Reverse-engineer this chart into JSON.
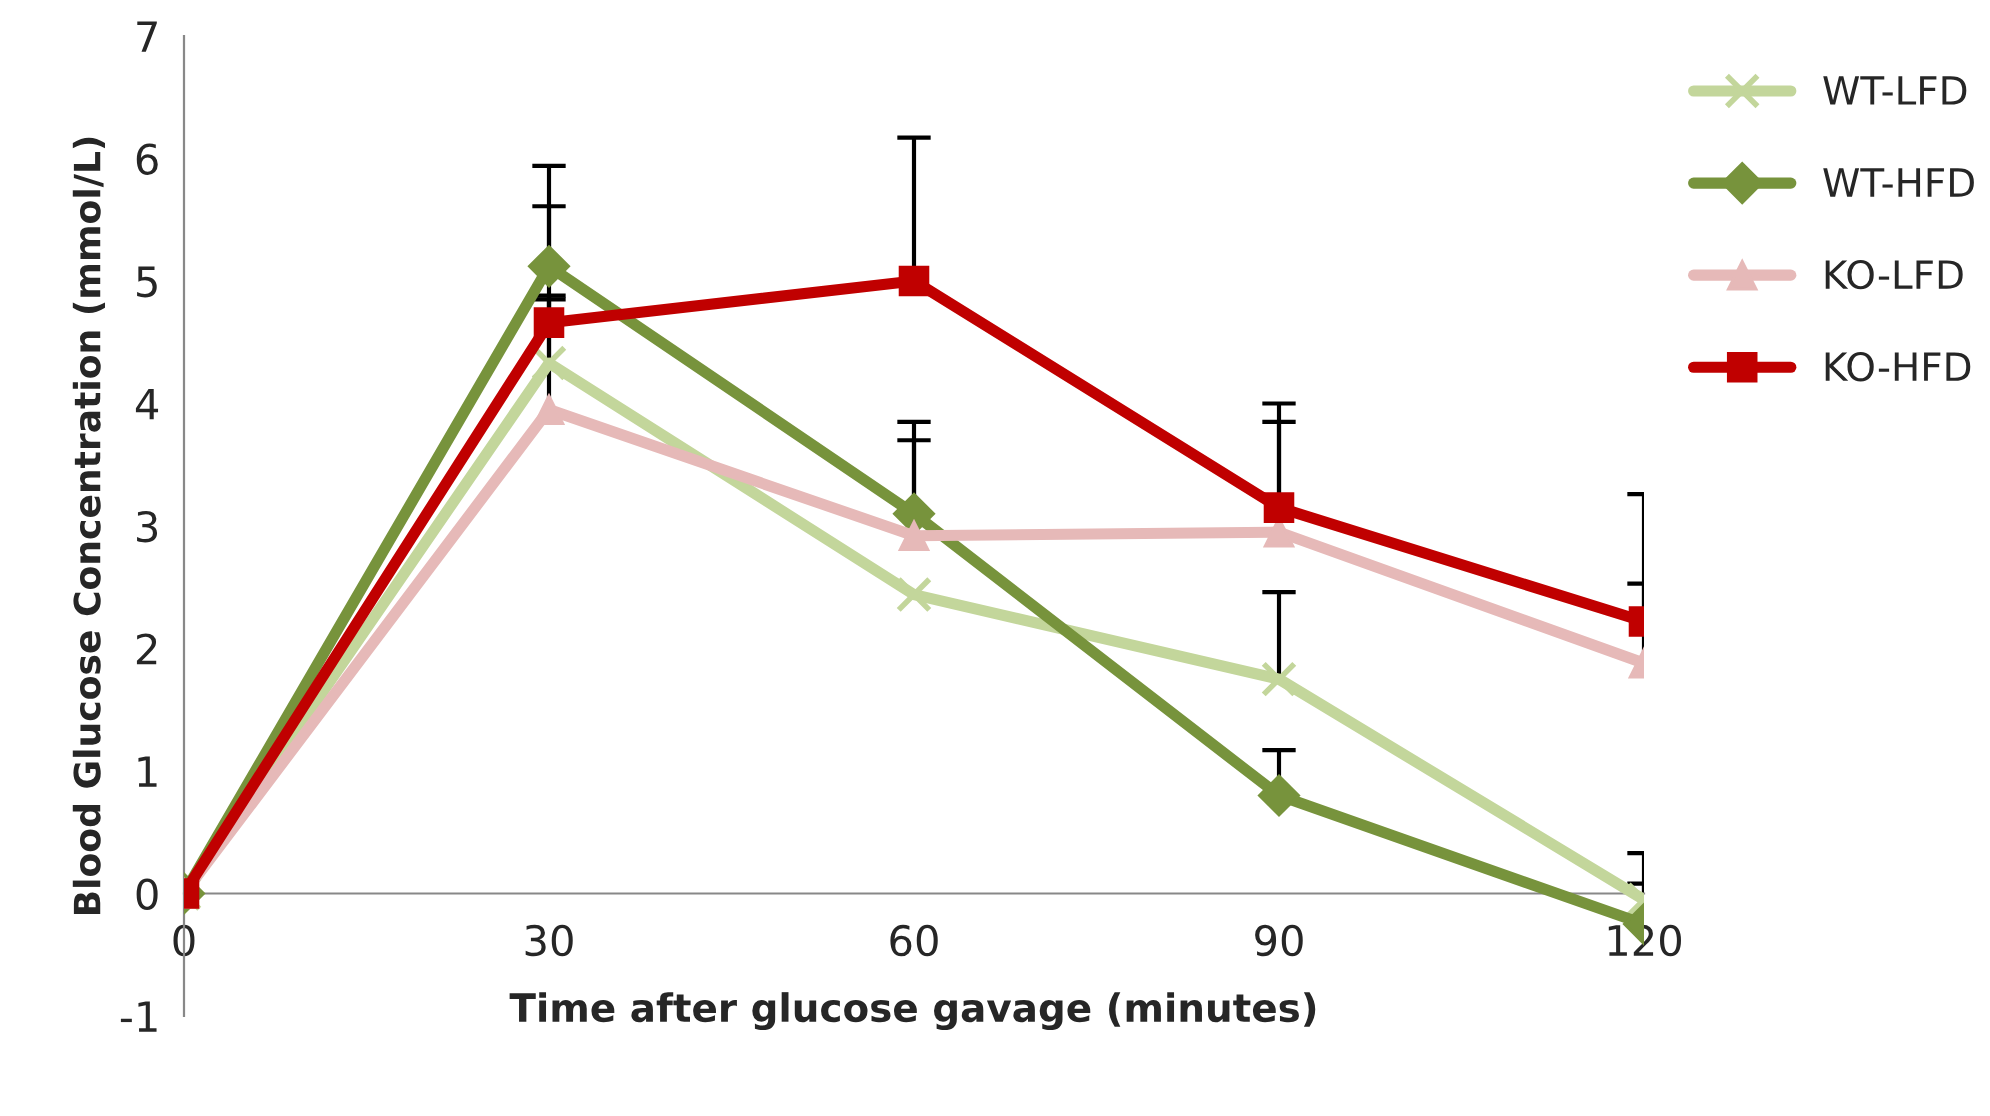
{
  "chart_data": {
    "type": "line",
    "xlabel": "Time after glucose gavage (minutes)",
    "ylabel": "Blood Glucose Concentration (mmol/L)",
    "x": [
      0,
      30,
      60,
      90,
      120
    ],
    "xlim": [
      0,
      120
    ],
    "xticks": [
      0,
      30,
      60,
      90,
      120
    ],
    "ylim": [
      -1,
      7
    ],
    "yticks": [
      -1,
      0,
      1,
      2,
      3,
      4,
      5,
      6,
      7
    ],
    "grid": false,
    "legend": "right",
    "line_style": "solid",
    "series": [
      {
        "name": "WT-LFD",
        "color": "#c3d69b",
        "marker": "cross",
        "values": [
          0,
          4.33,
          2.44,
          1.75,
          -0.05
        ],
        "errors": [
          null,
          [
            4.33,
            4.88
          ],
          null,
          [
            1.75,
            2.46
          ],
          [
            -0.05,
            0.33
          ]
        ]
      },
      {
        "name": "WT-HFD",
        "color": "#77933c",
        "marker": "diamond",
        "values": [
          0,
          5.12,
          3.1,
          0.8,
          -0.25
        ],
        "errors": [
          null,
          [
            5.12,
            5.94
          ],
          [
            3.1,
            3.85
          ],
          [
            0.8,
            1.17
          ],
          [
            -0.25,
            0.08
          ]
        ]
      },
      {
        "name": "KO-LFD",
        "color": "#e6b9b8",
        "marker": "triangle",
        "values": [
          0,
          3.95,
          2.92,
          2.95,
          1.88
        ],
        "errors": [
          null,
          [
            3.95,
            4.85
          ],
          [
            2.92,
            3.7
          ],
          [
            2.95,
            3.85
          ],
          [
            1.88,
            2.53
          ]
        ]
      },
      {
        "name": "KO-HFD",
        "color": "#c00000",
        "marker": "square",
        "values": [
          0,
          4.66,
          5.0,
          3.15,
          2.22
        ],
        "errors": [
          null,
          [
            4.66,
            5.61
          ],
          [
            5.0,
            6.17
          ],
          [
            3.15,
            4.0
          ],
          [
            2.22,
            3.26
          ]
        ]
      }
    ]
  }
}
